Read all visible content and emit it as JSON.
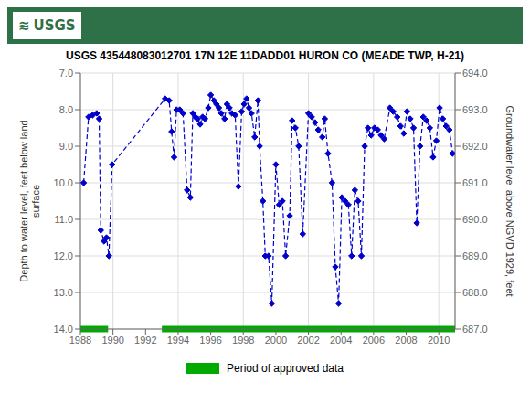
{
  "chart_data": {
    "type": "line",
    "title": "USGS 435448083012701 17N 12E 11DADD01 HURON CO (MEADE TWP, H-21)",
    "annotations": [
      {
        "text": "≋",
        "color": "#2E7048"
      },
      {
        "text": "USGS",
        "color": "#2E7048"
      }
    ],
    "ylabel": "Depth to water level, feet below land\nsurface",
    "y2label": "Groundwater level above NGVD 1929, feet",
    "xlim": [
      1988,
      2011
    ],
    "xticks": [
      1988,
      1990,
      1992,
      1994,
      1996,
      1998,
      2000,
      2002,
      2004,
      2006,
      2008,
      2010
    ],
    "ylim": [
      14.0,
      7.0
    ],
    "yticks": [
      {
        "value": 7.0,
        "label": "7.0"
      },
      {
        "value": 8.0,
        "label": "8.0"
      },
      {
        "value": 9.0,
        "label": "9.0"
      },
      {
        "value": 10.0,
        "label": "10.0"
      },
      {
        "value": 11.0,
        "label": "11.0"
      },
      {
        "value": 12.0,
        "label": "12.0"
      },
      {
        "value": 13.0,
        "label": "13.0"
      },
      {
        "value": 14.0,
        "label": "14.0"
      }
    ],
    "y2lim": [
      687.0,
      694.0
    ],
    "y2ticks": [
      {
        "value": 687.0,
        "label": "687.0"
      },
      {
        "value": 688.0,
        "label": "688.0"
      },
      {
        "value": 689.0,
        "label": "689.0"
      },
      {
        "value": 690.0,
        "label": "690.0"
      },
      {
        "value": 691.0,
        "label": "691.0"
      },
      {
        "value": 692.0,
        "label": "692.0"
      },
      {
        "value": 693.0,
        "label": "693.0"
      },
      {
        "value": 694.0,
        "label": "694.0"
      }
    ],
    "grid": true,
    "legend": "bottom",
    "color": "#0000CC",
    "marker": "diamond",
    "line_style": "dashed",
    "x": [
      1988.2,
      1988.5,
      1988.75,
      1989.0,
      1989.15,
      1989.25,
      1989.45,
      1989.6,
      1989.75,
      1989.95,
      1993.2,
      1993.45,
      1993.6,
      1993.75,
      1993.9,
      1994.1,
      1994.3,
      1994.55,
      1994.75,
      1994.9,
      1995.05,
      1995.2,
      1995.35,
      1995.5,
      1995.65,
      1995.85,
      1996.0,
      1996.2,
      1996.35,
      1996.5,
      1996.65,
      1996.85,
      1997.0,
      1997.15,
      1997.3,
      1997.5,
      1997.7,
      1997.9,
      1998.05,
      1998.2,
      1998.35,
      1998.5,
      1998.7,
      1998.9,
      1999.0,
      1999.2,
      1999.35,
      1999.55,
      1999.75,
      2000.0,
      2000.2,
      2000.4,
      2000.6,
      2000.85,
      2001.0,
      2001.2,
      2001.4,
      2001.65,
      2002.0,
      2002.2,
      2002.4,
      2002.6,
      2002.85,
      2003.0,
      2003.2,
      2003.45,
      2003.65,
      2003.85,
      2004.05,
      2004.25,
      2004.45,
      2004.65,
      2004.85,
      2005.05,
      2005.25,
      2005.45,
      2005.65,
      2005.85,
      2006.05,
      2006.25,
      2006.45,
      2006.65,
      2007.0,
      2007.2,
      2007.45,
      2007.65,
      2007.85,
      2008.05,
      2008.25,
      2008.45,
      2008.65,
      2008.85,
      2009.05,
      2009.25,
      2009.45,
      2009.65,
      2009.85,
      2010.05,
      2010.25,
      2010.45,
      2010.65,
      2010.85
    ],
    "values": [
      10.0,
      8.2,
      8.15,
      8.1,
      8.25,
      11.3,
      11.6,
      11.5,
      12.0,
      9.5,
      7.7,
      7.75,
      8.6,
      9.3,
      8.0,
      8.0,
      8.1,
      10.2,
      10.4,
      8.1,
      8.2,
      8.25,
      8.4,
      8.2,
      8.25,
      7.95,
      7.6,
      7.75,
      7.85,
      7.95,
      8.1,
      8.25,
      7.85,
      7.95,
      8.1,
      8.15,
      10.1,
      8.05,
      7.85,
      7.7,
      7.95,
      8.1,
      8.75,
      7.75,
      9.0,
      10.5,
      12.0,
      12.0,
      13.3,
      9.5,
      10.6,
      10.5,
      12.0,
      10.9,
      8.3,
      8.5,
      9.0,
      11.4,
      8.1,
      8.2,
      8.35,
      8.55,
      8.75,
      8.25,
      9.2,
      10.0,
      12.3,
      13.3,
      10.4,
      10.5,
      10.6,
      12.0,
      10.2,
      10.5,
      12.0,
      9.0,
      8.5,
      8.7,
      8.5,
      8.55,
      8.7,
      8.8,
      7.95,
      8.05,
      8.2,
      8.45,
      8.65,
      8.05,
      8.25,
      8.5,
      11.1,
      9.0,
      8.2,
      8.3,
      8.5,
      9.3,
      8.85,
      7.95,
      8.25,
      8.45,
      8.55,
      9.2
    ],
    "periods": [
      {
        "name": "Period of approved data",
        "color": "#00AA00",
        "y": 14.0,
        "ranges": [
          [
            1988.0,
            1989.7
          ],
          [
            1993.0,
            2011.0
          ]
        ]
      }
    ]
  }
}
